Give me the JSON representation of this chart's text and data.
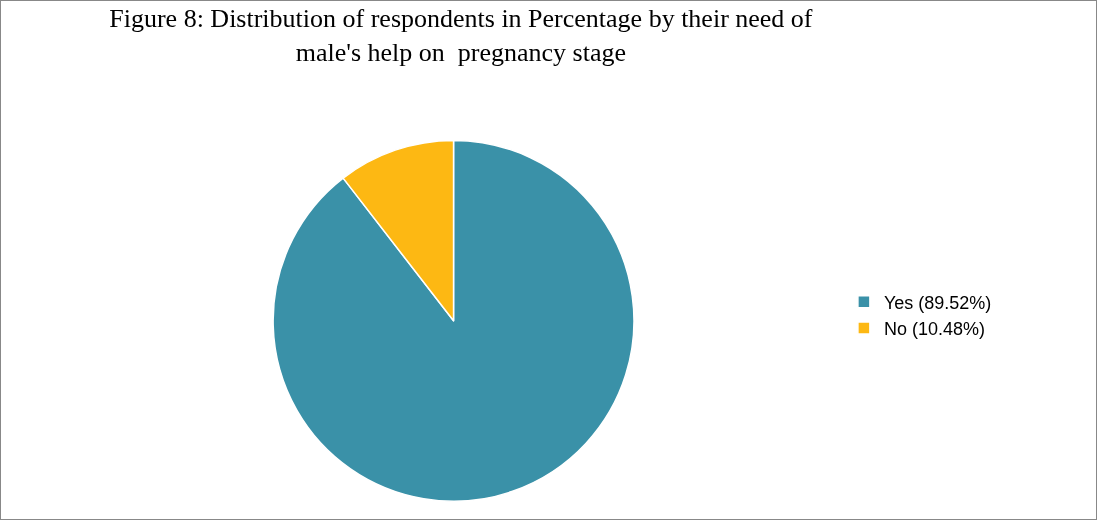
{
  "chart_data": {
    "type": "pie",
    "title": "Figure 8: Distribution of respondents in Percentage by their need of\nmale's help on  pregnancy stage",
    "categories": [
      "Yes (89.52%)",
      "No (10.48%)"
    ],
    "values": [
      89.52,
      10.48
    ],
    "colors": [
      "#3a91a8",
      "#fdb813"
    ],
    "legend": "right"
  }
}
